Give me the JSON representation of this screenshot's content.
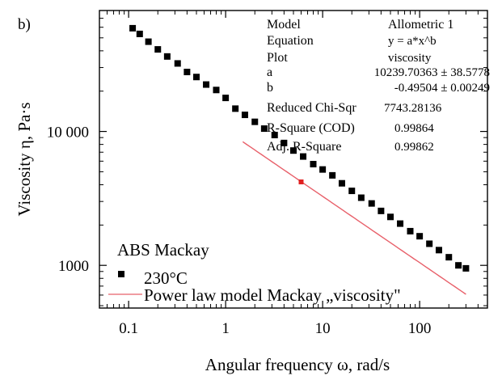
{
  "chart_data": {
    "type": "scatter",
    "panel_label": "b)",
    "xlabel": "Angular frequency ω, rad/s",
    "ylabel": "Viscosity η, Pa·s",
    "xscale": "log",
    "yscale": "log",
    "xlim": [
      0.05,
      500
    ],
    "ylim": [
      480,
      80000
    ],
    "xticks": [
      {
        "value": 0.1,
        "label": "0.1"
      },
      {
        "value": 1,
        "label": "1"
      },
      {
        "value": 10,
        "label": "10"
      },
      {
        "value": 100,
        "label": "100"
      }
    ],
    "yticks": [
      {
        "value": 1000,
        "label": "1000"
      },
      {
        "value": 10000,
        "label": "10 000"
      }
    ],
    "legend": {
      "title": "ABS Mackay",
      "placement": "bottom-left",
      "entries": [
        {
          "label": "230°C",
          "marker": "square",
          "color": "#000000"
        },
        {
          "label": "Power law model Mackay „viscosity\"",
          "marker": "line",
          "color": "#e8606a"
        }
      ]
    },
    "series": [
      {
        "name": "230°C",
        "marker": "square",
        "color": "#000000",
        "x": [
          0.11,
          0.13,
          0.16,
          0.2,
          0.25,
          0.32,
          0.4,
          0.5,
          0.63,
          0.8,
          1.0,
          1.26,
          1.58,
          2.0,
          2.5,
          3.2,
          4.0,
          5.0,
          6.3,
          8.0,
          10,
          12.6,
          15.8,
          20,
          25,
          32,
          40,
          50,
          63,
          80,
          100,
          126,
          158,
          200,
          251,
          300
        ],
        "y": [
          59000,
          53500,
          46800,
          41000,
          36300,
          32200,
          27800,
          25500,
          22400,
          20400,
          17800,
          14800,
          13300,
          11800,
          10500,
          9400,
          8200,
          7200,
          6500,
          5700,
          5200,
          4700,
          4100,
          3600,
          3200,
          2900,
          2550,
          2300,
          2050,
          1800,
          1650,
          1450,
          1300,
          1150,
          1000,
          950
        ]
      }
    ],
    "fit": {
      "name": "Power law model Mackay „viscosity\"",
      "color": "#e8606a",
      "a": 10239.70363,
      "b": -0.49504,
      "x_range": [
        1.5,
        300
      ]
    },
    "fit_marker": {
      "x": 6,
      "y": 4200,
      "color": "#e02020"
    },
    "fit_table": [
      {
        "label": "Model",
        "value": "Allometric 1"
      },
      {
        "label": "Equation",
        "value": "y = a*x^b"
      },
      {
        "label": "Plot",
        "value": "viscosity"
      },
      {
        "label": "a",
        "value": "10239.70363 ± 38.5778"
      },
      {
        "label": "b",
        "value": "-0.49504 ± 0.00249"
      },
      {
        "label": "Reduced Chi-Sqr",
        "value": "7743.28136"
      },
      {
        "label": "R-Square (COD)",
        "value": "0.99864"
      },
      {
        "label": "Adj. R-Square",
        "value": "0.99862"
      }
    ]
  }
}
